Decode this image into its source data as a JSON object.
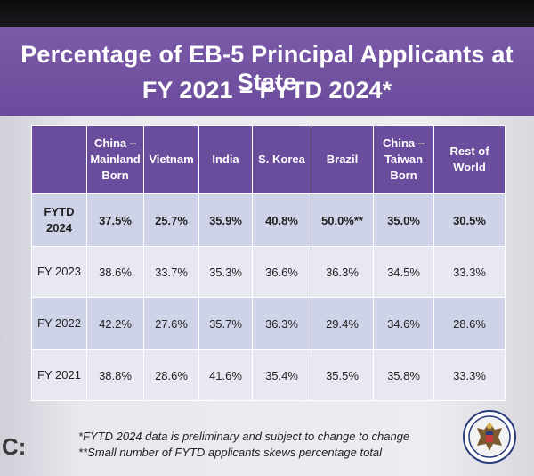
{
  "slide": {
    "title_line1": "Percentage of EB-5 Principal Applicants at State",
    "title_line2": "FY 2021 – FYTD 2024*",
    "colors": {
      "banner": "#6b4c9c",
      "row_a": "#cfd3e8",
      "row_b": "#e7e8f1"
    }
  },
  "table": {
    "headers": [
      "",
      "China – Mainland Born",
      "Vietnam",
      "India",
      "S. Korea",
      "Brazil",
      "China – Taiwan Born",
      "Rest of World"
    ],
    "header_lines": {
      "china_mainland": [
        "China –",
        "Mainland",
        "Born"
      ],
      "china_taiwan": [
        "China –",
        "Taiwan",
        "Born"
      ],
      "rest_of_world": [
        "Rest of",
        "World"
      ]
    },
    "rows": [
      {
        "label_lines": [
          "FYTD",
          "2024"
        ],
        "cells": [
          "37.5%",
          "25.7%",
          "35.9%",
          "40.8%",
          "50.0%**",
          "35.0%",
          "30.5%"
        ]
      },
      {
        "label": "FY 2023",
        "cells": [
          "38.6%",
          "33.7%",
          "35.3%",
          "36.6%",
          "36.3%",
          "34.5%",
          "33.3%"
        ]
      },
      {
        "label": "FY 2022",
        "cells": [
          "42.2%",
          "27.6%",
          "35.7%",
          "36.3%",
          "29.4%",
          "34.6%",
          "28.6%"
        ]
      },
      {
        "label": "FY 2021",
        "cells": [
          "38.8%",
          "28.6%",
          "41.6%",
          "35.4%",
          "35.5%",
          "35.8%",
          "33.3%"
        ]
      }
    ]
  },
  "footnotes": {
    "note1": "*FYTD 2024 data is preliminary and subject to change to change",
    "note2": "**Small number of FYTD applicants skews percentage total"
  },
  "branding": {
    "left_logo_text": "C:",
    "seal_icon": "department-of-state-seal-icon"
  }
}
